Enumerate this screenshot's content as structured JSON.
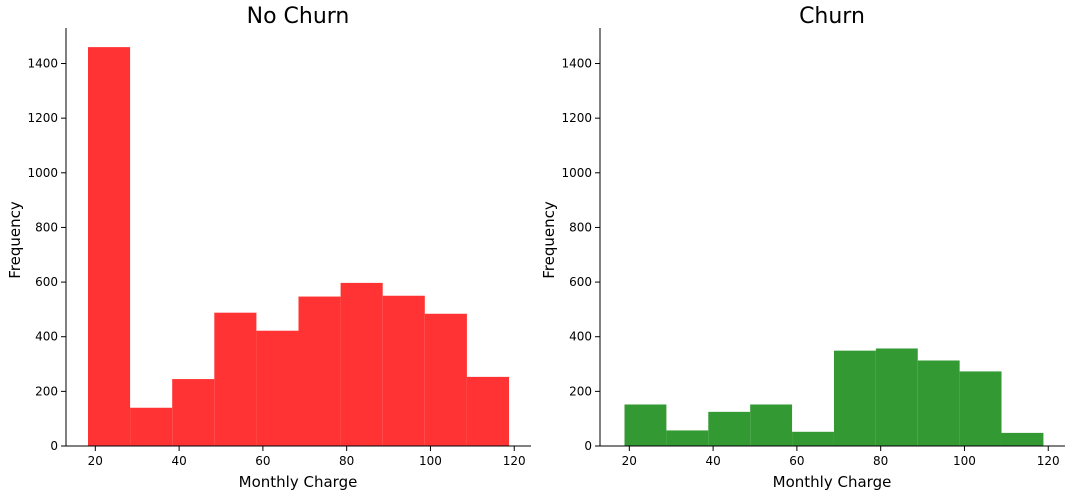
{
  "chart_data": [
    {
      "type": "bar",
      "title": "No Churn",
      "xlabel": "Monthly Charge",
      "ylabel": "Frequency",
      "color": "#ff3333",
      "xlim": [
        13,
        124
      ],
      "ylim": [
        0,
        1530
      ],
      "xticks": [
        20,
        40,
        60,
        80,
        100,
        120
      ],
      "yticks": [
        0,
        200,
        400,
        600,
        800,
        1000,
        1200,
        1400
      ],
      "bins": [
        {
          "x0": 18.25,
          "x1": 28.3,
          "count": 1460
        },
        {
          "x0": 28.3,
          "x1": 38.35,
          "count": 140
        },
        {
          "x0": 38.35,
          "x1": 48.4,
          "count": 245
        },
        {
          "x0": 48.4,
          "x1": 58.45,
          "count": 488
        },
        {
          "x0": 58.45,
          "x1": 68.5,
          "count": 422
        },
        {
          "x0": 68.5,
          "x1": 78.55,
          "count": 547
        },
        {
          "x0": 78.55,
          "x1": 88.6,
          "count": 597
        },
        {
          "x0": 88.6,
          "x1": 98.65,
          "count": 550
        },
        {
          "x0": 98.65,
          "x1": 108.7,
          "count": 484
        },
        {
          "x0": 108.7,
          "x1": 118.75,
          "count": 253
        }
      ]
    },
    {
      "type": "bar",
      "title": "Churn",
      "xlabel": "Monthly Charge",
      "ylabel": "Frequency",
      "color": "#339933",
      "xlim": [
        13,
        124
      ],
      "ylim": [
        0,
        1530
      ],
      "xticks": [
        20,
        40,
        60,
        80,
        100,
        120
      ],
      "yticks": [
        0,
        200,
        400,
        600,
        800,
        1000,
        1200,
        1400
      ],
      "bins": [
        {
          "x0": 18.85,
          "x1": 28.85,
          "count": 152
        },
        {
          "x0": 28.85,
          "x1": 38.85,
          "count": 57
        },
        {
          "x0": 38.85,
          "x1": 48.85,
          "count": 125
        },
        {
          "x0": 48.85,
          "x1": 58.85,
          "count": 152
        },
        {
          "x0": 58.85,
          "x1": 68.85,
          "count": 52
        },
        {
          "x0": 68.85,
          "x1": 78.85,
          "count": 349
        },
        {
          "x0": 78.85,
          "x1": 88.85,
          "count": 357
        },
        {
          "x0": 88.85,
          "x1": 98.85,
          "count": 313
        },
        {
          "x0": 98.85,
          "x1": 108.85,
          "count": 273
        },
        {
          "x0": 108.85,
          "x1": 118.85,
          "count": 48
        }
      ]
    }
  ]
}
